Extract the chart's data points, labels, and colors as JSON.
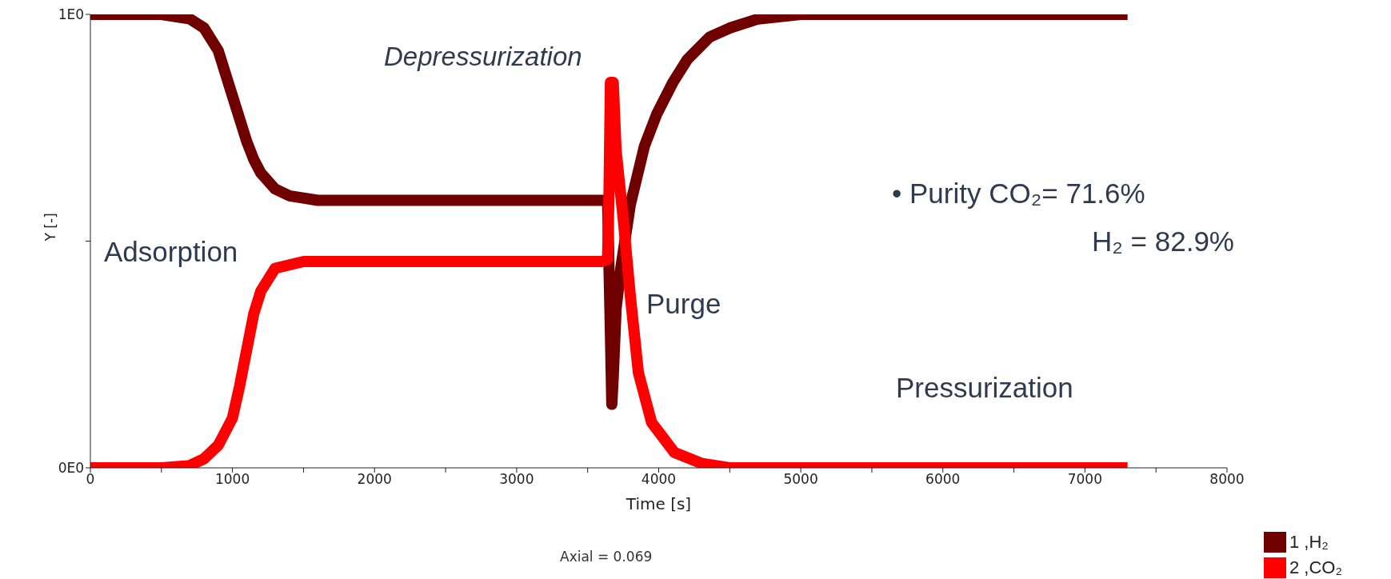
{
  "chart_data": {
    "type": "line",
    "xlabel": "Time [s]",
    "ylabel": "Y [-]",
    "xlim": [
      0,
      8000
    ],
    "ylim": [
      0,
      1
    ],
    "xticks": [
      0,
      {
        "value": 500,
        "label": null
      },
      1000,
      {
        "value": 1500,
        "label": null
      },
      2000,
      {
        "value": 2500,
        "label": null
      },
      3000,
      {
        "value": 3500,
        "label": null
      },
      4000,
      {
        "value": 4500,
        "label": null
      },
      5000,
      {
        "value": 5500,
        "label": null
      },
      6000,
      {
        "value": 6500,
        "label": null
      },
      7000,
      {
        "value": 7500,
        "label": null
      },
      8000
    ],
    "yticks": [
      {
        "value": 0,
        "label": "0E0"
      },
      {
        "value": 0.5,
        "label": null
      },
      {
        "value": 1,
        "label": "1E0"
      }
    ],
    "legend": "bottom right",
    "series": [
      {
        "name": "1 ,H₂",
        "color": "#700000",
        "x": [
          0,
          500,
          700,
          800,
          900,
          1000,
          1050,
          1100,
          1150,
          1200,
          1300,
          1400,
          1600,
          2000,
          3600,
          3640,
          3660,
          3670,
          3680,
          3700,
          3733,
          3800,
          3900,
          3986,
          4100,
          4200,
          4358,
          4500,
          4700,
          5000,
          6000,
          7300
        ],
        "values": [
          1,
          1,
          0.99,
          0.97,
          0.92,
          0.82,
          0.77,
          0.72,
          0.68,
          0.65,
          0.615,
          0.6,
          0.59,
          0.59,
          0.59,
          0.59,
          0.3,
          0.14,
          0.2,
          0.35,
          0.44,
          0.58,
          0.71,
          0.78,
          0.85,
          0.9,
          0.95,
          0.97,
          0.99,
          1,
          1,
          1
        ]
      },
      {
        "name": "2 ,CO₂",
        "color": "#ff0000",
        "x": [
          0,
          500,
          700,
          800,
          900,
          1000,
          1050,
          1100,
          1150,
          1200,
          1300,
          1500,
          3600,
          3640,
          3650,
          3660,
          3680,
          3700,
          3750,
          3800,
          3857,
          3950,
          4110,
          4300,
          4500,
          7300
        ],
        "values": [
          0,
          0,
          0.005,
          0.02,
          0.05,
          0.11,
          0.18,
          0.26,
          0.34,
          0.39,
          0.44,
          0.455,
          0.455,
          0.46,
          0.6,
          0.85,
          0.85,
          0.7,
          0.55,
          0.38,
          0.21,
          0.1,
          0.034,
          0.01,
          0,
          0
        ]
      }
    ],
    "annotations": [
      "Depressurization",
      "Adsorption",
      "Purge",
      "Pressurization",
      "• Purity CO₂= 71.6%",
      "H₂ = 82.9%",
      "Axial = 0.069"
    ]
  }
}
